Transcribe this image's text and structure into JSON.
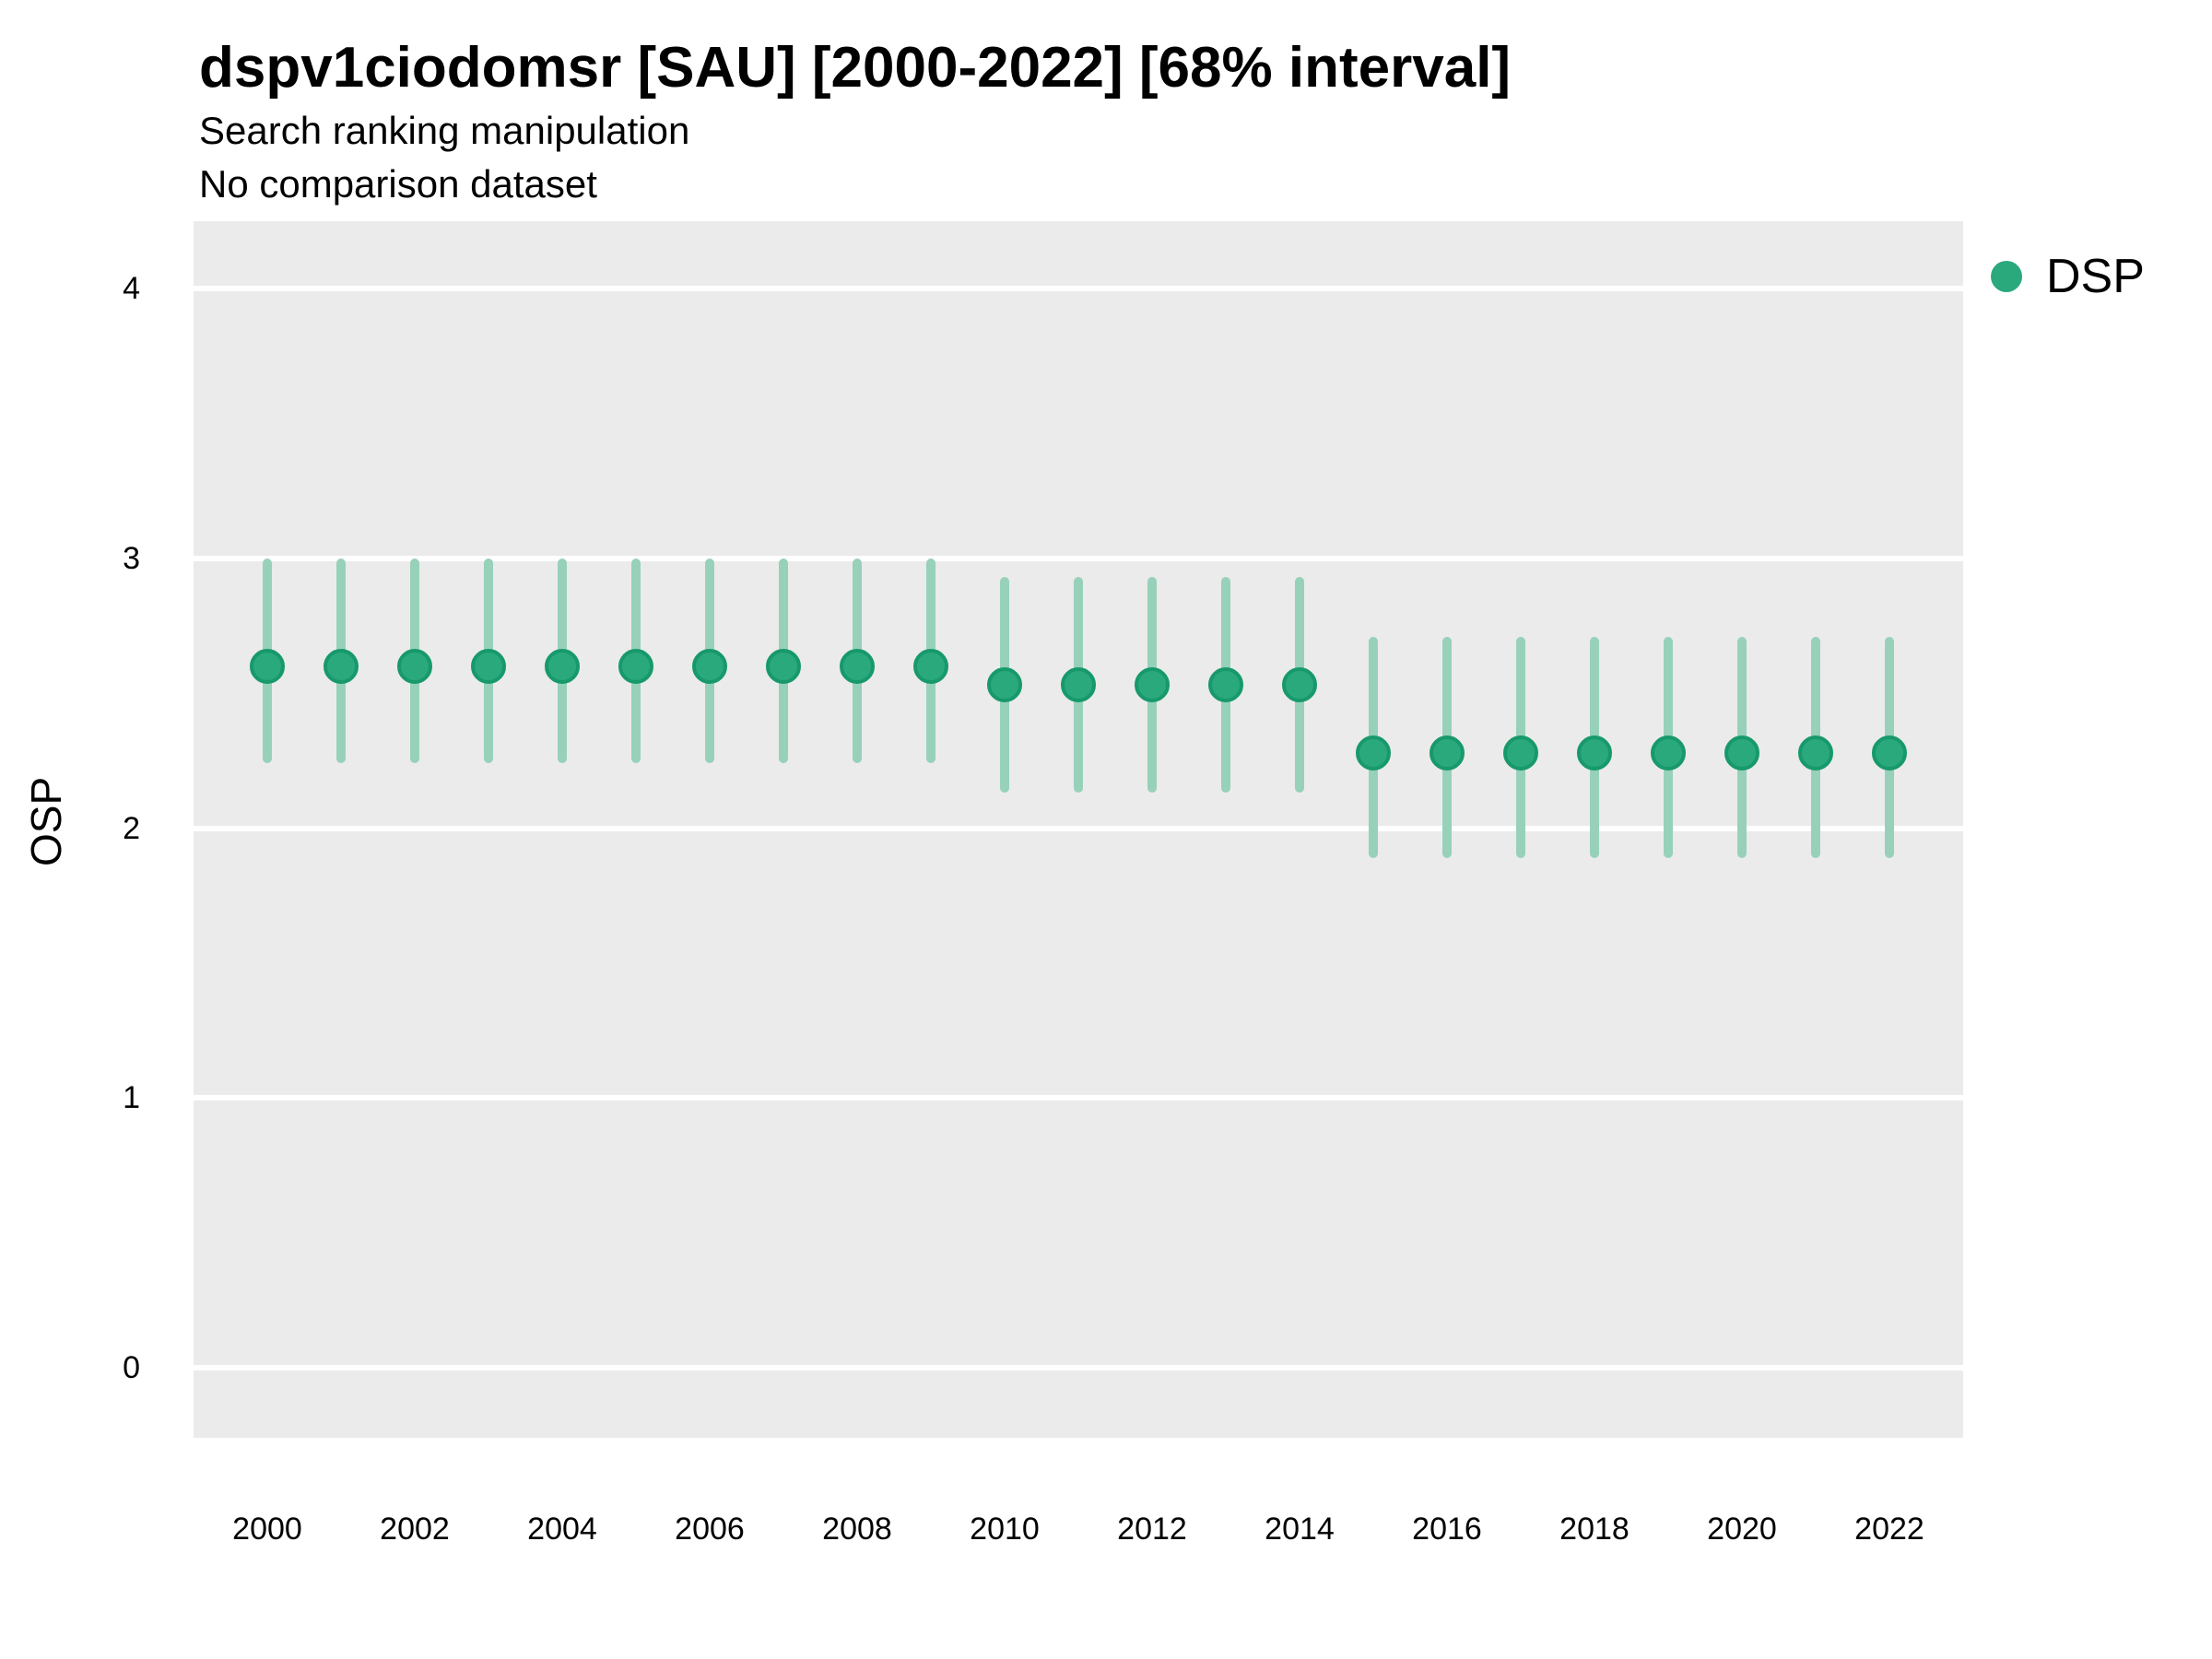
{
  "header": {
    "title": "dspv1ciodomsr [SAU] [2000-2022] [68% interval]",
    "subtitle": "Search ranking manipulation",
    "note": "No comparison dataset"
  },
  "legend": {
    "items": [
      {
        "label": "DSP",
        "color": "#2AA97C"
      }
    ],
    "position": "right"
  },
  "colors": {
    "point_fill": "#2AA97C",
    "point_border": "#17996C",
    "interval_bar": "#97D1BA",
    "panel_background": "#EBEBEB",
    "gridline": "#FFFFFF",
    "text": "#000000"
  },
  "chart_data": {
    "type": "scatter",
    "title": "dspv1ciodomsr [SAU] [2000-2022] [68% interval]",
    "subtitle": "Search ranking manipulation",
    "note": "No comparison dataset",
    "xlabel": "",
    "ylabel": "OSP",
    "interval": "68%",
    "grid": "horizontal white major gridlines on gray panel",
    "legend_position": "right",
    "x": [
      2000,
      2001,
      2002,
      2003,
      2004,
      2005,
      2006,
      2007,
      2008,
      2009,
      2010,
      2011,
      2012,
      2013,
      2014,
      2015,
      2016,
      2017,
      2018,
      2019,
      2020,
      2021,
      2022
    ],
    "series": [
      {
        "name": "DSP",
        "values": [
          2.6,
          2.6,
          2.6,
          2.6,
          2.6,
          2.6,
          2.6,
          2.6,
          2.6,
          2.6,
          2.53,
          2.53,
          2.53,
          2.53,
          2.53,
          2.28,
          2.28,
          2.28,
          2.28,
          2.28,
          2.28,
          2.28,
          2.28
        ],
        "lower": [
          2.24,
          2.24,
          2.24,
          2.24,
          2.24,
          2.24,
          2.24,
          2.24,
          2.24,
          2.24,
          2.13,
          2.13,
          2.13,
          2.13,
          2.13,
          1.89,
          1.89,
          1.89,
          1.89,
          1.89,
          1.89,
          1.89,
          1.89
        ],
        "upper": [
          3.0,
          3.0,
          3.0,
          3.0,
          3.0,
          3.0,
          3.0,
          3.0,
          3.0,
          3.0,
          2.93,
          2.93,
          2.93,
          2.93,
          2.93,
          2.71,
          2.71,
          2.71,
          2.71,
          2.71,
          2.71,
          2.71,
          2.71
        ]
      }
    ],
    "ylim": [
      -0.26,
      4.25
    ],
    "yticks": [
      0,
      1,
      2,
      3,
      4
    ],
    "xticks": [
      2000,
      2002,
      2004,
      2006,
      2008,
      2010,
      2012,
      2014,
      2016,
      2018,
      2020,
      2022
    ]
  }
}
